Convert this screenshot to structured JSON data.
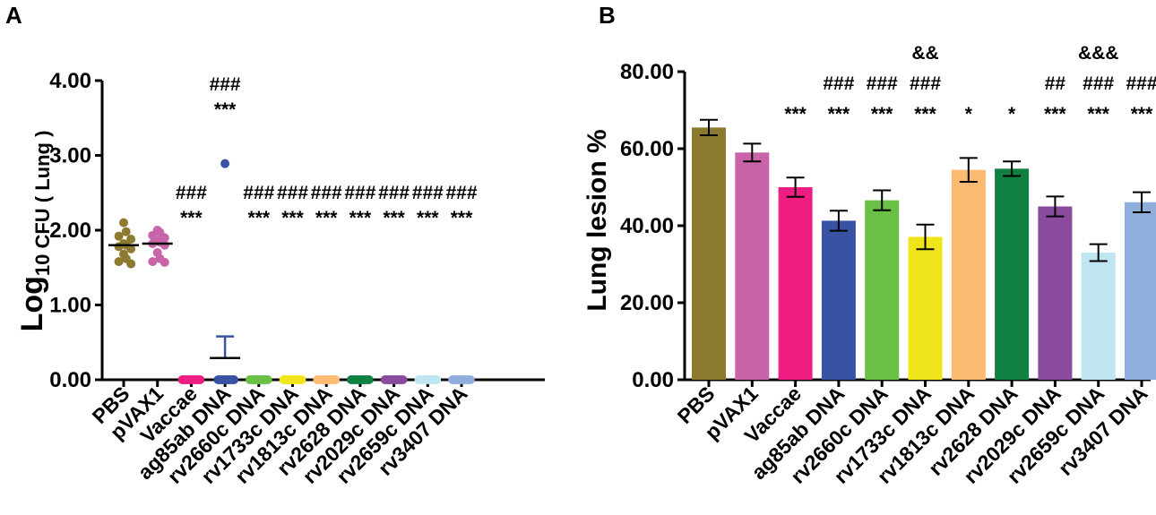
{
  "panel_a_letter": "A",
  "panel_b_letter": "B",
  "chart_data": [
    {
      "type": "scatter",
      "title": "",
      "ylabel": "Log10 CFU ( Lung )",
      "ylabel_parts": {
        "main": "Log",
        "sub": "10 CFU ( Lung )"
      },
      "ylim": [
        0,
        4
      ],
      "yticks": [
        "0.00",
        "1.00",
        "2.00",
        "3.00",
        "4.00"
      ],
      "categories": [
        "PBS",
        "pVAX1",
        "Vaccae",
        "ag85ab DNA",
        "rv2660c DNA",
        "rv1733c DNA",
        "rv1813c DNA",
        "rv2628 DNA",
        "rv2029c DNA",
        "rv2659c DNA",
        "rv3407 DNA"
      ],
      "colors": [
        "#8b7a30",
        "#c765a8",
        "#ee1d81",
        "#3852a4",
        "#6abf45",
        "#f0e51a",
        "#fcba72",
        "#118142",
        "#8a4a9e",
        "#bfe5f1",
        "#8faedc"
      ],
      "points": [
        [
          2.1,
          1.98,
          1.92,
          1.88,
          1.82,
          1.8,
          1.78,
          1.75,
          1.68,
          1.62,
          1.58,
          1.55
        ],
        [
          2.0,
          1.97,
          1.93,
          1.9,
          1.86,
          1.84,
          1.82,
          1.8,
          1.7,
          1.62,
          1.58,
          1.57
        ],
        [
          0,
          0,
          0,
          0,
          0,
          0,
          0,
          0,
          0,
          0
        ],
        [
          2.89,
          0,
          0,
          0,
          0,
          0,
          0,
          0,
          0,
          0
        ],
        [
          0,
          0,
          0,
          0,
          0,
          0,
          0,
          0,
          0,
          0
        ],
        [
          0,
          0,
          0,
          0,
          0,
          0,
          0,
          0,
          0,
          0
        ],
        [
          0,
          0,
          0,
          0,
          0,
          0,
          0,
          0,
          0,
          0
        ],
        [
          0,
          0,
          0,
          0,
          0,
          0,
          0,
          0,
          0,
          0
        ],
        [
          0,
          0,
          0,
          0,
          0,
          0,
          0,
          0,
          0,
          0
        ],
        [
          0,
          0,
          0,
          0,
          0,
          0,
          0,
          0,
          0,
          0
        ],
        [
          0,
          0,
          0,
          0,
          0,
          0,
          0,
          0,
          0,
          0
        ]
      ],
      "means": [
        1.8,
        1.82,
        0,
        0.29,
        0,
        0,
        0,
        0,
        0,
        0,
        0
      ],
      "sd_upper": [
        null,
        null,
        null,
        0.58,
        null,
        null,
        null,
        null,
        null,
        null,
        null
      ],
      "annotations": [
        [],
        [],
        [
          "###",
          "***"
        ],
        [
          "###",
          "***"
        ],
        [
          "###",
          "***"
        ],
        [
          "###",
          "***"
        ],
        [
          "###",
          "***"
        ],
        [
          "###",
          "***"
        ],
        [
          "###",
          "***"
        ],
        [
          "###",
          "***"
        ],
        [
          "###",
          "***"
        ]
      ]
    },
    {
      "type": "bar",
      "title": "",
      "ylabel": "Lung lesion %",
      "ylim": [
        0,
        80
      ],
      "yticks": [
        "0.00",
        "20.00",
        "40.00",
        "60.00",
        "80.00"
      ],
      "categories": [
        "PBS",
        "pVAX1",
        "Vaccae",
        "ag85ab DNA",
        "rv2660c DNA",
        "rv1733c DNA",
        "rv1813c DNA",
        "rv2628 DNA",
        "rv2029c DNA",
        "rv2659c DNA",
        "rv3407 DNA"
      ],
      "colors": [
        "#8b7a30",
        "#c765a8",
        "#ee1d81",
        "#3852a4",
        "#6abf45",
        "#f0e51a",
        "#fcba72",
        "#118142",
        "#8a4a9e",
        "#bfe5f1",
        "#8faedc"
      ],
      "values": [
        65.5,
        59,
        50,
        41.3,
        46.6,
        37.1,
        54.5,
        54.8,
        45,
        33,
        46.1
      ],
      "errors": [
        2,
        2.3,
        2.5,
        2.6,
        2.6,
        3.2,
        3.1,
        1.9,
        2.6,
        2.2,
        2.6
      ],
      "annotations": [
        [],
        [],
        [
          "***"
        ],
        [
          "###",
          "***"
        ],
        [
          "###",
          "***"
        ],
        [
          "&&",
          "###",
          "***"
        ],
        [
          "*"
        ],
        [
          "*"
        ],
        [
          "##",
          "***"
        ],
        [
          "&&&",
          "###",
          "***"
        ],
        [
          "###",
          "***"
        ]
      ]
    }
  ]
}
